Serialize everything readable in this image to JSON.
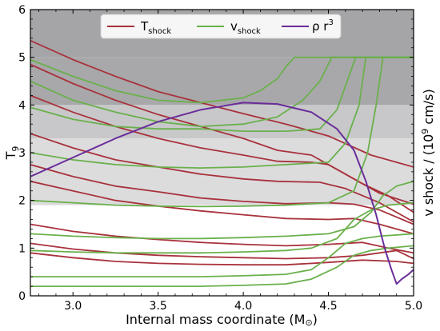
{
  "chart_data": {
    "type": "line",
    "xlabel_main": "Internal mass coordinate (M",
    "xlabel_unit_symbol": "⊙",
    "xlabel_close": ")",
    "ylabel_main": "T",
    "ylabel_sub": "9",
    "y2label_main": "v shock / (10",
    "y2label_sup": "9",
    "y2label_close": " cm/s)",
    "xlim": [
      2.75,
      5.0
    ],
    "ylim": [
      0,
      6
    ],
    "x_ticks": [
      3.0,
      3.5,
      4.0,
      4.5,
      5.0
    ],
    "x_tick_labels": [
      "3.0",
      "3.5",
      "4.0",
      "4.5",
      "5.0"
    ],
    "y_ticks": [
      0,
      1,
      2,
      3,
      4,
      5,
      6
    ],
    "y_tick_labels": [
      "0",
      "1",
      "2",
      "3",
      "4",
      "5",
      "6"
    ],
    "legend": {
      "placement": "top-center",
      "entries": [
        {
          "main": "T",
          "sub": "shock",
          "sup": "",
          "color": "#a8323c"
        },
        {
          "main": "v",
          "sub": "shock",
          "sup": "",
          "color": "#6ab04c"
        },
        {
          "main": "ρ r",
          "sub": "",
          "sup": "3",
          "color": "#6a2d9a"
        }
      ]
    },
    "bands": [
      {
        "y0": 5.0,
        "y1": 6.0,
        "color": "#a5a5a7"
      },
      {
        "y0": 4.0,
        "y1": 5.0,
        "color": "#a8a8aa"
      },
      {
        "y0": 3.3,
        "y1": 4.0,
        "color": "#c8c8ca"
      },
      {
        "y0": 1.9,
        "y1": 3.3,
        "color": "#dcdcdd"
      }
    ],
    "series": [
      {
        "kind": "T_shock",
        "color": "#a8323c",
        "points": [
          [
            2.75,
            5.35
          ],
          [
            3.0,
            4.95
          ],
          [
            3.25,
            4.6
          ],
          [
            3.5,
            4.28
          ],
          [
            3.75,
            4.05
          ],
          [
            4.0,
            3.82
          ],
          [
            4.25,
            3.6
          ],
          [
            4.5,
            3.35
          ],
          [
            4.75,
            2.95
          ],
          [
            5.0,
            2.7
          ]
        ]
      },
      {
        "kind": "T_shock",
        "color": "#a8323c",
        "points": [
          [
            2.75,
            4.85
          ],
          [
            3.0,
            4.45
          ],
          [
            3.25,
            4.1
          ],
          [
            3.5,
            3.8
          ],
          [
            3.75,
            3.55
          ],
          [
            4.0,
            3.3
          ],
          [
            4.2,
            3.05
          ],
          [
            4.3,
            3.0
          ],
          [
            4.4,
            2.95
          ],
          [
            4.6,
            2.55
          ],
          [
            4.8,
            2.15
          ],
          [
            5.0,
            1.92
          ]
        ]
      },
      {
        "kind": "T_shock",
        "color": "#a8323c",
        "points": [
          [
            2.75,
            4.2
          ],
          [
            3.0,
            3.85
          ],
          [
            3.25,
            3.55
          ],
          [
            3.5,
            3.3
          ],
          [
            3.75,
            3.1
          ],
          [
            4.0,
            2.95
          ],
          [
            4.2,
            2.82
          ],
          [
            4.4,
            2.8
          ],
          [
            4.5,
            2.75
          ],
          [
            4.7,
            2.35
          ],
          [
            4.85,
            2.1
          ],
          [
            5.0,
            1.75
          ]
        ]
      },
      {
        "kind": "T_shock",
        "color": "#a8323c",
        "points": [
          [
            2.75,
            3.4
          ],
          [
            3.0,
            3.1
          ],
          [
            3.25,
            2.85
          ],
          [
            3.5,
            2.7
          ],
          [
            3.75,
            2.55
          ],
          [
            4.0,
            2.45
          ],
          [
            4.2,
            2.4
          ],
          [
            4.45,
            2.38
          ],
          [
            4.6,
            2.25
          ],
          [
            4.8,
            1.95
          ],
          [
            5.0,
            1.55
          ]
        ]
      },
      {
        "kind": "T_shock",
        "color": "#a8323c",
        "points": [
          [
            2.75,
            2.75
          ],
          [
            3.0,
            2.5
          ],
          [
            3.25,
            2.3
          ],
          [
            3.5,
            2.18
          ],
          [
            3.75,
            2.05
          ],
          [
            4.0,
            1.98
          ],
          [
            4.25,
            1.93
          ],
          [
            4.5,
            1.95
          ],
          [
            4.65,
            1.92
          ],
          [
            4.8,
            1.8
          ],
          [
            5.0,
            1.5
          ]
        ]
      },
      {
        "kind": "T_shock",
        "color": "#a8323c",
        "points": [
          [
            2.75,
            2.4
          ],
          [
            3.0,
            2.2
          ],
          [
            3.25,
            2.0
          ],
          [
            3.5,
            1.88
          ],
          [
            3.75,
            1.78
          ],
          [
            4.0,
            1.7
          ],
          [
            4.25,
            1.62
          ],
          [
            4.5,
            1.6
          ],
          [
            4.65,
            1.62
          ],
          [
            4.8,
            1.5
          ],
          [
            5.0,
            1.3
          ]
        ]
      },
      {
        "kind": "T_shock",
        "color": "#a8323c",
        "points": [
          [
            2.75,
            1.5
          ],
          [
            3.0,
            1.35
          ],
          [
            3.25,
            1.25
          ],
          [
            3.5,
            1.18
          ],
          [
            3.75,
            1.12
          ],
          [
            4.0,
            1.08
          ],
          [
            4.25,
            1.05
          ],
          [
            4.5,
            1.08
          ],
          [
            4.7,
            1.12
          ],
          [
            4.85,
            1.0
          ],
          [
            5.0,
            0.9
          ]
        ]
      },
      {
        "kind": "T_shock",
        "color": "#a8323c",
        "points": [
          [
            2.75,
            1.1
          ],
          [
            3.0,
            0.98
          ],
          [
            3.25,
            0.9
          ],
          [
            3.5,
            0.85
          ],
          [
            3.75,
            0.82
          ],
          [
            4.0,
            0.8
          ],
          [
            4.25,
            0.78
          ],
          [
            4.5,
            0.8
          ],
          [
            4.7,
            0.85
          ],
          [
            4.9,
            0.95
          ],
          [
            5.0,
            0.78
          ]
        ]
      },
      {
        "kind": "T_shock",
        "color": "#a8323c",
        "points": [
          [
            2.75,
            0.9
          ],
          [
            3.0,
            0.8
          ],
          [
            3.25,
            0.72
          ],
          [
            3.5,
            0.68
          ],
          [
            3.75,
            0.66
          ],
          [
            4.0,
            0.65
          ],
          [
            4.25,
            0.65
          ],
          [
            4.5,
            0.7
          ],
          [
            4.7,
            0.75
          ],
          [
            4.9,
            0.72
          ],
          [
            5.0,
            0.68
          ]
        ]
      },
      {
        "kind": "v_shock",
        "color": "#6ab04c",
        "points": [
          [
            2.75,
            4.95
          ],
          [
            3.0,
            4.6
          ],
          [
            3.25,
            4.3
          ],
          [
            3.5,
            4.1
          ],
          [
            3.75,
            4.05
          ],
          [
            4.0,
            4.15
          ],
          [
            4.1,
            4.3
          ],
          [
            4.2,
            4.55
          ],
          [
            4.25,
            4.8
          ],
          [
            4.3,
            5.0
          ],
          [
            5.0,
            5.0
          ]
        ]
      },
      {
        "kind": "v_shock",
        "color": "#6ab04c",
        "points": [
          [
            2.75,
            4.5
          ],
          [
            3.0,
            4.1
          ],
          [
            3.25,
            3.85
          ],
          [
            3.5,
            3.65
          ],
          [
            3.75,
            3.55
          ],
          [
            4.0,
            3.6
          ],
          [
            4.2,
            3.75
          ],
          [
            4.35,
            4.1
          ],
          [
            4.45,
            4.5
          ],
          [
            4.52,
            5.0
          ],
          [
            5.0,
            5.0
          ]
        ]
      },
      {
        "kind": "v_shock",
        "color": "#6ab04c",
        "points": [
          [
            2.75,
            3.95
          ],
          [
            3.0,
            3.7
          ],
          [
            3.25,
            3.55
          ],
          [
            3.5,
            3.5
          ],
          [
            3.75,
            3.5
          ],
          [
            4.0,
            3.45
          ],
          [
            4.25,
            3.45
          ],
          [
            4.45,
            3.5
          ],
          [
            4.55,
            3.9
          ],
          [
            4.62,
            4.6
          ],
          [
            4.66,
            5.0
          ],
          [
            5.0,
            5.0
          ]
        ]
      },
      {
        "kind": "v_shock",
        "color": "#6ab04c",
        "points": [
          [
            2.75,
            3.0
          ],
          [
            3.0,
            2.85
          ],
          [
            3.25,
            2.75
          ],
          [
            3.5,
            2.7
          ],
          [
            3.75,
            2.68
          ],
          [
            4.0,
            2.7
          ],
          [
            4.25,
            2.75
          ],
          [
            4.5,
            2.8
          ],
          [
            4.6,
            3.2
          ],
          [
            4.68,
            4.0
          ],
          [
            4.72,
            5.0
          ],
          [
            5.0,
            5.0
          ]
        ]
      },
      {
        "kind": "v_shock",
        "color": "#6ab04c",
        "points": [
          [
            2.75,
            2.0
          ],
          [
            3.0,
            1.95
          ],
          [
            3.25,
            1.9
          ],
          [
            3.5,
            1.88
          ],
          [
            3.75,
            1.87
          ],
          [
            4.0,
            1.88
          ],
          [
            4.25,
            1.9
          ],
          [
            4.5,
            1.95
          ],
          [
            4.65,
            2.2
          ],
          [
            4.73,
            3.0
          ],
          [
            4.78,
            4.0
          ],
          [
            4.82,
            5.0
          ],
          [
            5.0,
            5.0
          ]
        ]
      },
      {
        "kind": "v_shock",
        "color": "#6ab04c",
        "points": [
          [
            2.75,
            1.3
          ],
          [
            3.0,
            1.25
          ],
          [
            3.25,
            1.22
          ],
          [
            3.5,
            1.2
          ],
          [
            3.75,
            1.2
          ],
          [
            4.0,
            1.22
          ],
          [
            4.25,
            1.25
          ],
          [
            4.5,
            1.3
          ],
          [
            4.65,
            1.45
          ],
          [
            4.75,
            1.75
          ],
          [
            4.82,
            2.1
          ],
          [
            4.9,
            2.3
          ],
          [
            5.0,
            2.4
          ]
        ]
      },
      {
        "kind": "v_shock",
        "color": "#6ab04c",
        "points": [
          [
            2.75,
            0.95
          ],
          [
            3.0,
            0.92
          ],
          [
            3.25,
            0.9
          ],
          [
            3.5,
            0.9
          ],
          [
            3.75,
            0.9
          ],
          [
            4.0,
            0.92
          ],
          [
            4.25,
            0.95
          ],
          [
            4.4,
            1.0
          ],
          [
            4.55,
            1.2
          ],
          [
            4.65,
            1.6
          ],
          [
            4.75,
            1.8
          ],
          [
            4.85,
            1.9
          ],
          [
            5.0,
            1.95
          ]
        ]
      },
      {
        "kind": "v_shock",
        "color": "#6ab04c",
        "points": [
          [
            2.75,
            0.4
          ],
          [
            3.0,
            0.4
          ],
          [
            3.25,
            0.4
          ],
          [
            3.5,
            0.4
          ],
          [
            3.75,
            0.4
          ],
          [
            4.0,
            0.42
          ],
          [
            4.25,
            0.45
          ],
          [
            4.4,
            0.55
          ],
          [
            4.5,
            0.8
          ],
          [
            4.6,
            1.1
          ],
          [
            4.7,
            1.2
          ],
          [
            4.8,
            1.25
          ],
          [
            5.0,
            1.3
          ]
        ]
      },
      {
        "kind": "v_shock",
        "color": "#6ab04c",
        "points": [
          [
            2.75,
            0.2
          ],
          [
            3.0,
            0.2
          ],
          [
            3.25,
            0.2
          ],
          [
            3.5,
            0.2
          ],
          [
            3.75,
            0.2
          ],
          [
            4.0,
            0.22
          ],
          [
            4.25,
            0.25
          ],
          [
            4.4,
            0.35
          ],
          [
            4.55,
            0.6
          ],
          [
            4.65,
            0.85
          ],
          [
            4.75,
            0.95
          ],
          [
            4.85,
            1.0
          ],
          [
            5.0,
            1.05
          ]
        ]
      },
      {
        "kind": "rho_r3",
        "color": "#6a2d9a",
        "points": [
          [
            2.75,
            2.5
          ],
          [
            3.0,
            2.9
          ],
          [
            3.25,
            3.3
          ],
          [
            3.5,
            3.65
          ],
          [
            3.75,
            3.9
          ],
          [
            4.0,
            4.05
          ],
          [
            4.2,
            4.02
          ],
          [
            4.4,
            3.85
          ],
          [
            4.55,
            3.5
          ],
          [
            4.65,
            3.05
          ],
          [
            4.72,
            2.4
          ],
          [
            4.78,
            1.7
          ],
          [
            4.83,
            1.0
          ],
          [
            4.87,
            0.55
          ],
          [
            4.9,
            0.25
          ],
          [
            4.93,
            0.35
          ],
          [
            4.97,
            0.45
          ],
          [
            5.0,
            0.55
          ]
        ]
      }
    ]
  }
}
